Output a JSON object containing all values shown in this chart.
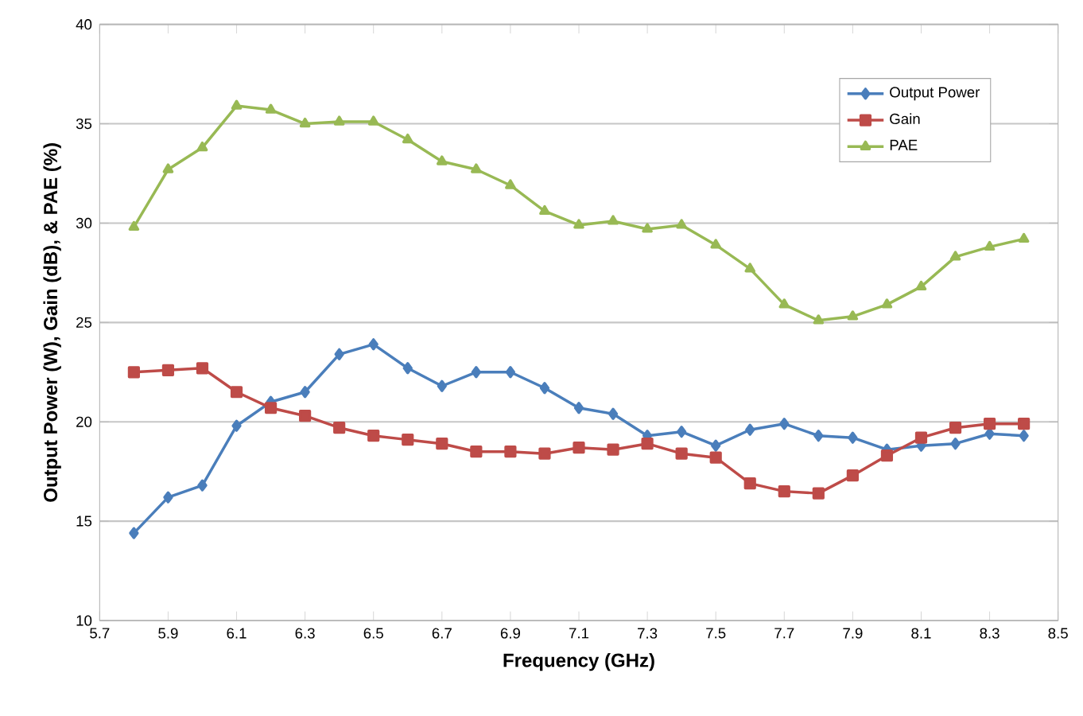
{
  "chart_data": {
    "type": "line",
    "xlabel": "Frequency (GHz)",
    "ylabel": "Output Power (W), Gain (dB), & PAE (%)",
    "x": [
      5.8,
      5.9,
      6.0,
      6.1,
      6.2,
      6.3,
      6.4,
      6.5,
      6.6,
      6.7,
      6.8,
      6.9,
      7.0,
      7.1,
      7.2,
      7.3,
      7.4,
      7.5,
      7.6,
      7.7,
      7.8,
      7.9,
      8.0,
      8.1,
      8.2,
      8.3,
      8.4
    ],
    "series": [
      {
        "name": "Output Power",
        "color": "#4a7ebb",
        "marker": "diamond",
        "values": [
          14.4,
          16.2,
          16.8,
          19.8,
          21.0,
          21.5,
          23.4,
          23.9,
          22.7,
          21.8,
          22.5,
          22.5,
          21.7,
          20.7,
          20.4,
          19.3,
          19.5,
          18.8,
          19.6,
          19.9,
          19.3,
          19.2,
          18.6,
          18.8,
          18.9,
          19.4,
          19.3
        ]
      },
      {
        "name": "Gain",
        "color": "#be4b48",
        "marker": "square",
        "values": [
          22.5,
          22.6,
          22.7,
          21.5,
          20.7,
          20.3,
          19.7,
          19.3,
          19.1,
          18.9,
          18.5,
          18.5,
          18.4,
          18.7,
          18.6,
          18.9,
          18.4,
          18.2,
          16.9,
          16.5,
          16.4,
          17.3,
          18.3,
          19.2,
          19.7,
          19.9,
          19.9
        ]
      },
      {
        "name": "PAE",
        "color": "#98b954",
        "marker": "triangle",
        "values": [
          29.8,
          32.7,
          33.8,
          35.9,
          35.7,
          35.0,
          35.1,
          35.1,
          34.2,
          33.1,
          32.7,
          31.9,
          30.6,
          29.9,
          30.1,
          29.7,
          29.9,
          28.9,
          27.7,
          25.9,
          25.1,
          25.3,
          25.9,
          26.8,
          28.3,
          28.8,
          29.2
        ]
      }
    ],
    "xlim": [
      5.7,
      8.5
    ],
    "xticks": [
      5.7,
      5.9,
      6.1,
      6.3,
      6.5,
      6.7,
      6.9,
      7.1,
      7.3,
      7.5,
      7.7,
      7.9,
      8.1,
      8.3,
      8.5
    ],
    "ylim": [
      10,
      40
    ],
    "yticks": [
      10,
      15,
      20,
      25,
      30,
      35,
      40
    ],
    "grid": "y",
    "legend": "top right",
    "line_style": "solid"
  }
}
